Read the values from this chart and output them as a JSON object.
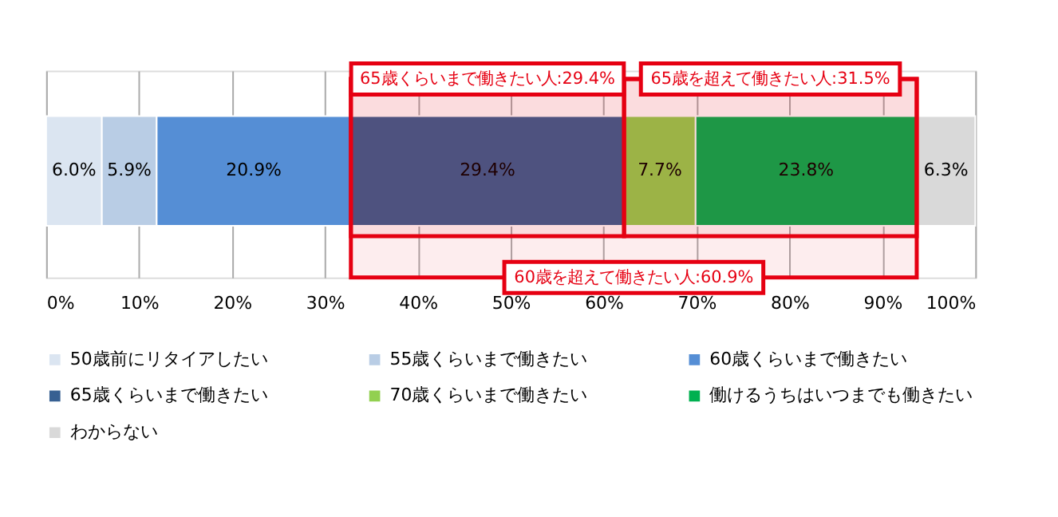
{
  "chart_data": {
    "type": "bar",
    "orientation": "horizontal",
    "stacked": true,
    "categories": [
      null
    ],
    "series": [
      {
        "name": "50歳前にリタイアしたい",
        "color": "#dbe5f1",
        "values": [
          6.0
        ],
        "value_labels": [
          "6.0%"
        ]
      },
      {
        "name": "55歳くらいまで働きたい",
        "color": "#b9cde5",
        "values": [
          5.9
        ],
        "value_labels": [
          "5.9%"
        ]
      },
      {
        "name": "60歳くらいまで働きたい",
        "color": "#558ed5",
        "values": [
          20.9
        ],
        "value_labels": [
          "20.9%"
        ]
      },
      {
        "name": "65歳くらいまで働きたい",
        "color": "#376092",
        "values": [
          29.4
        ],
        "value_labels": [
          "29.4%"
        ]
      },
      {
        "name": "70歳くらいまで働きたい",
        "color": "#92d050",
        "values": [
          7.7
        ],
        "value_labels": [
          "7.7%"
        ]
      },
      {
        "name": "働けるうちはいつまでも働きたい",
        "color": "#00b050",
        "values": [
          23.8
        ],
        "value_labels": [
          "23.8%"
        ]
      },
      {
        "name": "わからない",
        "color": "#d9d9d9",
        "values": [
          6.3
        ],
        "value_labels": [
          "6.3%"
        ]
      }
    ],
    "xlim": [
      0,
      100
    ],
    "xticks": [
      {
        "value": 0,
        "label": "0%"
      },
      {
        "value": 10,
        "label": "10%"
      },
      {
        "value": 20,
        "label": "20%"
      },
      {
        "value": 30,
        "label": "30%"
      },
      {
        "value": 40,
        "label": "40%"
      },
      {
        "value": 50,
        "label": "50%"
      },
      {
        "value": 60,
        "label": "60%"
      },
      {
        "value": 70,
        "label": "70%"
      },
      {
        "value": 80,
        "label": "80%"
      },
      {
        "value": 90,
        "label": "90%"
      },
      {
        "value": 100,
        "label": "100%"
      }
    ],
    "bands": [
      {
        "axis": "x",
        "from": 32.8,
        "to": 62.2,
        "label": "65歳くらいまで働きたい人:29.4%",
        "color": "#e60012"
      },
      {
        "axis": "x",
        "from": 62.2,
        "to": 93.7,
        "label": "65歳を超えて働きたい人:31.5%",
        "color": "#e60012"
      },
      {
        "axis": "x",
        "from": 32.8,
        "to": 93.7,
        "label": "60歳を超えて働きたい人:60.9%",
        "color": "#e60012"
      }
    ],
    "grid": "x",
    "legend": "bottom",
    "tick_labels": "x"
  }
}
